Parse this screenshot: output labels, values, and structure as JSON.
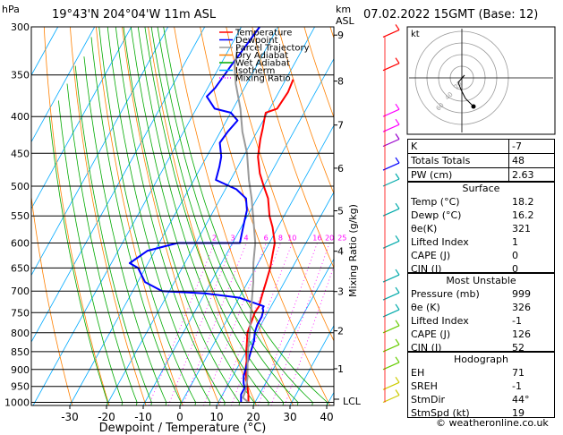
{
  "header": {
    "location": "19°43'N  204°04'W  11m  ASL",
    "datetime": "07.02.2022  15GMT  (Base: 12)",
    "hpa_label": "hPa",
    "km_label": "km",
    "asl_label": "ASL"
  },
  "legend": {
    "items": [
      {
        "label": "Temperature",
        "color": "#ff0000",
        "style": "solid"
      },
      {
        "label": "Dewpoint",
        "color": "#0000ff",
        "style": "solid"
      },
      {
        "label": "Parcel Trajectory",
        "color": "#999999",
        "style": "solid"
      },
      {
        "label": "Dry Adiabat",
        "color": "#ff8000",
        "style": "solid"
      },
      {
        "label": "Wet Adiabat",
        "color": "#00aa00",
        "style": "solid"
      },
      {
        "label": "Isotherm",
        "color": "#00aaff",
        "style": "solid"
      },
      {
        "label": "Mixing Ratio",
        "color": "#ff00ff",
        "style": "dotted"
      }
    ]
  },
  "chart_data": {
    "type": "line",
    "title": "",
    "xlabel": "Dewpoint / Temperature (°C)",
    "ylabel": "hPa",
    "y2label": "Mixing Ratio (g/kg)",
    "xlim": [
      -35,
      40
    ],
    "ylim": [
      1010,
      300
    ],
    "y_scale": "log",
    "x_ticks": [
      -30,
      -20,
      -10,
      0,
      10,
      20,
      30,
      40
    ],
    "pressure_levels": [
      300,
      350,
      400,
      450,
      500,
      550,
      600,
      650,
      700,
      750,
      800,
      850,
      900,
      950,
      1000
    ],
    "km_ticks": [
      {
        "km": "9",
        "p": 308
      },
      {
        "km": "8",
        "p": 357
      },
      {
        "km": "7",
        "p": 411
      },
      {
        "km": "6",
        "p": 472
      },
      {
        "km": "5",
        "p": 541
      },
      {
        "km": "4",
        "p": 616
      },
      {
        "km": "3",
        "p": 701
      },
      {
        "km": "2",
        "p": 795
      },
      {
        "km": "1",
        "p": 898
      }
    ],
    "lcl_label": "LCL",
    "lcl_p": 990,
    "mixing_ratio_labels": [
      "2",
      "3",
      "4",
      "6",
      "8",
      "10",
      "16",
      "20",
      "25"
    ],
    "series": [
      {
        "name": "Temperature",
        "color": "#ff0000",
        "points": [
          [
            18.2,
            1000
          ],
          [
            17,
            975
          ],
          [
            15.5,
            950
          ],
          [
            14,
            925
          ],
          [
            12.5,
            900
          ],
          [
            11.5,
            875
          ],
          [
            10,
            850
          ],
          [
            8.8,
            825
          ],
          [
            7.5,
            800
          ],
          [
            7,
            775
          ],
          [
            6.5,
            750
          ],
          [
            6.7,
            735
          ],
          [
            6.2,
            720
          ],
          [
            5.6,
            700
          ],
          [
            5,
            680
          ],
          [
            4,
            650
          ],
          [
            2.5,
            620
          ],
          [
            1.5,
            600
          ],
          [
            -1.5,
            570
          ],
          [
            -4,
            550
          ],
          [
            -7,
            520
          ],
          [
            -10,
            500
          ],
          [
            -13,
            480
          ],
          [
            -16,
            455
          ],
          [
            -18,
            430
          ],
          [
            -19,
            415
          ],
          [
            -20,
            402
          ],
          [
            -20.5,
            395
          ],
          [
            -18,
            390
          ],
          [
            -17.5,
            370
          ],
          [
            -18,
            355
          ]
        ]
      },
      {
        "name": "Dewpoint",
        "color": "#0000ff",
        "points": [
          [
            16.2,
            1000
          ],
          [
            15,
            975
          ],
          [
            15,
            955
          ],
          [
            14,
            940
          ],
          [
            13,
            920
          ],
          [
            12.5,
            900
          ],
          [
            12,
            880
          ],
          [
            11.5,
            860
          ],
          [
            11,
            840
          ],
          [
            10.5,
            820
          ],
          [
            9.5,
            800
          ],
          [
            9,
            780
          ],
          [
            9,
            760
          ],
          [
            8.5,
            745
          ],
          [
            8,
            740
          ],
          [
            8,
            735
          ],
          [
            0,
            715
          ],
          [
            -10,
            705
          ],
          [
            -22,
            700
          ],
          [
            -28,
            680
          ],
          [
            -32,
            650
          ],
          [
            -35,
            640
          ],
          [
            -32,
            615
          ],
          [
            -25,
            600
          ],
          [
            -8,
            600
          ],
          [
            -9,
            580
          ],
          [
            -10,
            560
          ],
          [
            -11,
            540
          ],
          [
            -13,
            520
          ],
          [
            -17,
            505
          ],
          [
            -24,
            490
          ],
          [
            -25,
            470
          ],
          [
            -26,
            455
          ],
          [
            -28.5,
            435
          ],
          [
            -28,
            420
          ],
          [
            -27,
            405
          ],
          [
            -30,
            395
          ],
          [
            -35,
            390
          ],
          [
            -39,
            375
          ],
          [
            -38,
            365
          ],
          [
            -37,
            340
          ],
          [
            -36,
            320
          ],
          [
            -35,
            300
          ]
        ]
      },
      {
        "name": "Parcel Trajectory",
        "color": "#999999",
        "points": [
          [
            18.2,
            1000
          ],
          [
            16,
            985
          ],
          [
            15.6,
            960
          ],
          [
            14.3,
            925
          ],
          [
            12,
            880
          ],
          [
            10,
            840
          ],
          [
            8.1,
            800
          ],
          [
            6,
            760
          ],
          [
            3.8,
            720
          ],
          [
            1.5,
            680
          ],
          [
            -1.3,
            640
          ],
          [
            -3.8,
            600
          ],
          [
            -7.5,
            560
          ],
          [
            -11.5,
            520
          ],
          [
            -15,
            490
          ],
          [
            -19.5,
            450
          ],
          [
            -24,
            420
          ],
          [
            -28,
            390
          ],
          [
            -33,
            360
          ],
          [
            -36,
            340
          ],
          [
            -38,
            320
          ]
        ]
      }
    ]
  },
  "indices": [
    {
      "label": "K",
      "value": "-7"
    },
    {
      "label": "Totals Totals",
      "value": "48"
    },
    {
      "label": "PW (cm)",
      "value": "2.63"
    }
  ],
  "surface": {
    "title": "Surface",
    "rows": [
      {
        "label": "Temp (°C)",
        "value": "18.2"
      },
      {
        "label": "Dewp (°C)",
        "value": "16.2"
      },
      {
        "label": "θe(K)",
        "value": "321"
      },
      {
        "label": "Lifted Index",
        "value": "1"
      },
      {
        "label": "CAPE (J)",
        "value": "0"
      },
      {
        "label": "CIN (J)",
        "value": "0"
      }
    ]
  },
  "most_unstable": {
    "title": "Most Unstable",
    "rows": [
      {
        "label": "Pressure (mb)",
        "value": "999"
      },
      {
        "label": "θe (K)",
        "value": "326"
      },
      {
        "label": "Lifted Index",
        "value": "-1"
      },
      {
        "label": "CAPE (J)",
        "value": "126"
      },
      {
        "label": "CIN (J)",
        "value": "52"
      }
    ]
  },
  "hodograph": {
    "title": "Hodograph",
    "corner_label": "kt",
    "ring_labels": [
      "20",
      "40",
      "60",
      "80",
      "100",
      "120"
    ],
    "rows": [
      {
        "label": "EH",
        "value": "71"
      },
      {
        "label": "SREH",
        "value": "-1"
      },
      {
        "label": "StmDir",
        "value": "44°"
      },
      {
        "label": "StmSpd (kt)",
        "value": "19"
      }
    ]
  },
  "copyright": "© weatheronline.co.uk"
}
